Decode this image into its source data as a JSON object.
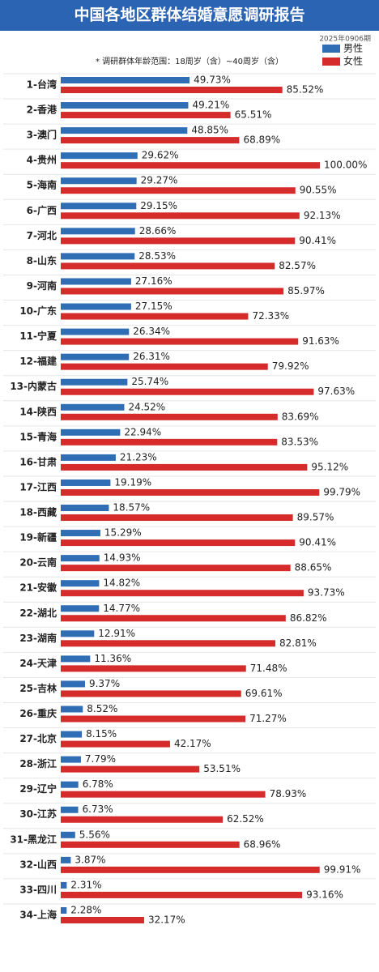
{
  "chart_data": {
    "type": "grouped-hbar",
    "title": "中国各地区群体结婚意愿调研报告",
    "subtitle": "2025年0906期",
    "note": "* 调研群体年龄范围：18周岁（含）~40周岁（含）",
    "categories": [
      "1-台湾",
      "2-香港",
      "3-澳门",
      "4-贵州",
      "5-海南",
      "6-广西",
      "7-河北",
      "8-山东",
      "9-河南",
      "10-广东",
      "11-宁夏",
      "12-福建",
      "13-内蒙古",
      "14-陕西",
      "15-青海",
      "16-甘肃",
      "17-江西",
      "18-西藏",
      "19-新疆",
      "20-云南",
      "21-安徽",
      "22-湖北",
      "23-湖南",
      "24-天津",
      "25-吉林",
      "26-重庆",
      "27-北京",
      "28-浙江",
      "29-辽宁",
      "30-江苏",
      "31-黑龙江",
      "32-山西",
      "33-四川",
      "34-上海"
    ],
    "series": [
      {
        "name": "男性",
        "color": "#2f6db5",
        "values": [
          49.73,
          49.21,
          48.85,
          29.62,
          29.27,
          29.15,
          28.66,
          28.53,
          27.16,
          27.15,
          26.34,
          26.31,
          25.74,
          24.52,
          22.94,
          21.23,
          19.19,
          18.57,
          15.29,
          14.93,
          14.82,
          14.77,
          12.91,
          11.36,
          9.37,
          8.52,
          8.15,
          7.79,
          6.78,
          6.73,
          5.56,
          3.87,
          2.31,
          2.28
        ],
        "value_labels": [
          "49.73%",
          "49.21%",
          "48.85%",
          "29.62%",
          "29.27%",
          "29.15%",
          "28.66%",
          "28.53%",
          "27.16%",
          "27.15%",
          "26.34%",
          "26.31%",
          "25.74%",
          "24.52%",
          "22.94%",
          "21.23%",
          "19.19%",
          "18.57%",
          "15.29%",
          "14.93%",
          "14.82%",
          "14.77%",
          "12.91%",
          "11.36%",
          "9.37%",
          "8.52%",
          "8.15%",
          "7.79%",
          "6.78%",
          "6.73%",
          "5.56%",
          "3.87%",
          "2.31%",
          "2.28%"
        ]
      },
      {
        "name": "女性",
        "color": "#d62b2b",
        "values": [
          85.52,
          65.51,
          68.89,
          100.0,
          90.55,
          92.13,
          90.41,
          82.57,
          85.97,
          72.33,
          91.63,
          79.92,
          97.63,
          83.69,
          83.53,
          95.12,
          99.79,
          89.57,
          90.41,
          88.65,
          93.73,
          86.82,
          82.81,
          71.48,
          69.61,
          71.27,
          42.17,
          53.51,
          78.93,
          62.52,
          68.96,
          99.91,
          93.16,
          32.17
        ],
        "value_labels": [
          "85.52%",
          "65.51%",
          "68.89%",
          "100.00%",
          "90.55%",
          "92.13%",
          "90.41%",
          "82.57%",
          "85.97%",
          "72.33%",
          "91.63%",
          "79.92%",
          "97.63%",
          "83.69%",
          "83.53%",
          "95.12%",
          "99.79%",
          "89.57%",
          "90.41%",
          "88.65%",
          "93.73%",
          "86.82%",
          "82.81%",
          "71.48%",
          "69.61%",
          "71.27%",
          "42.17%",
          "53.51%",
          "78.93%",
          "62.52%",
          "68.96%",
          "99.91%",
          "93.16%",
          "32.17%"
        ]
      }
    ]
  }
}
